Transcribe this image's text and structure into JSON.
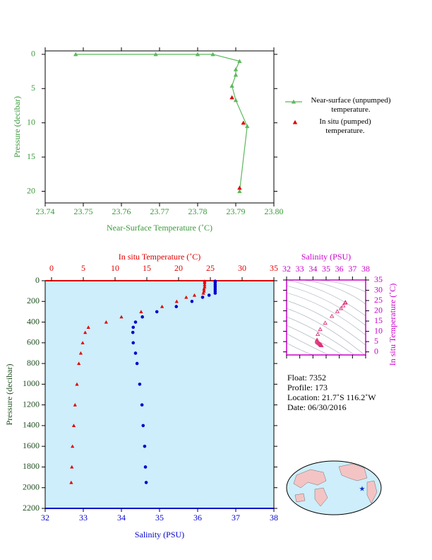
{
  "chart_data": [
    {
      "type": "line",
      "xlabel": "Near-Surface Temperature (˚C)",
      "ylabel": "Pressure (decibar)",
      "xlim": [
        23.74,
        23.8
      ],
      "xticks": [
        23.74,
        23.75,
        23.76,
        23.77,
        23.78,
        23.79,
        {
          "value": 23.8,
          "label": "23.80"
        }
      ],
      "ylim": [
        -0.5,
        21.7
      ],
      "yticks": [
        0,
        5,
        10,
        15,
        20
      ],
      "y_inverted": true,
      "legend": "right",
      "series": [
        {
          "name": "Near-surface (unpumped) temperature.",
          "color": "#5cb85c",
          "marker": "triangle",
          "line": true,
          "x": [
            23.748,
            23.769,
            23.78,
            23.784,
            23.791,
            23.79,
            23.79,
            23.789,
            23.79,
            23.793,
            23.791
          ],
          "y": [
            0,
            0,
            0,
            0,
            1.0,
            2.2,
            3.0,
            4.6,
            6.7,
            10.5,
            20.0
          ]
        },
        {
          "name": "In situ (pumped) temperature.",
          "color": "#e00000",
          "marker": "triangle",
          "line": false,
          "x": [
            23.789,
            23.792,
            23.791
          ],
          "y": [
            6.3,
            10.0,
            19.5
          ]
        }
      ]
    },
    {
      "type": "profile",
      "xlabel": "Salinity (PSU)",
      "x2label": "In situ Temperature (˚C)",
      "ylabel": "Pressure (decibar)",
      "xlim": [
        32,
        38
      ],
      "xticks": [
        32,
        33,
        34,
        35,
        36,
        37,
        38
      ],
      "x2lim": [
        -1,
        35
      ],
      "x2ticks": [
        0,
        5,
        10,
        15,
        20,
        25,
        30,
        35
      ],
      "ylim": [
        0,
        2200
      ],
      "yticks": [
        0,
        200,
        400,
        600,
        800,
        1000,
        1200,
        1400,
        1600,
        1800,
        2000,
        2200
      ],
      "y_inverted": true,
      "y": [
        5,
        20,
        40,
        60,
        80,
        100,
        120,
        140,
        160,
        200,
        250,
        300,
        350,
        400,
        450,
        500,
        600,
        700,
        800,
        1000,
        1200,
        1400,
        1600,
        1800,
        1950
      ],
      "series": [
        {
          "axis": "x2",
          "color": "#e00000",
          "marker": "triangle",
          "x": [
            24.1,
            24.1,
            24.1,
            24.1,
            24.0,
            24.0,
            23.9,
            22.5,
            21.2,
            19.7,
            17.4,
            14.1,
            11.0,
            8.6,
            5.8,
            5.3,
            4.9,
            4.6,
            4.3,
            4.0,
            3.7,
            3.5,
            3.3,
            3.2,
            3.1
          ]
        },
        {
          "axis": "x",
          "color": "#0000cc",
          "marker": "circle",
          "x": [
            36.46,
            36.46,
            36.46,
            36.46,
            36.46,
            36.46,
            36.46,
            36.3,
            36.13,
            35.85,
            35.44,
            34.93,
            34.55,
            34.37,
            34.31,
            34.3,
            34.31,
            34.37,
            34.41,
            34.48,
            34.54,
            34.57,
            34.61,
            34.63,
            34.65
          ]
        }
      ]
    },
    {
      "type": "ts",
      "xlabel": "Salinity (PSU)",
      "ylabel": "In situ Temperature (˚C)",
      "xlim": [
        32,
        38
      ],
      "xticks": [
        32,
        33,
        34,
        35,
        36,
        37,
        38
      ],
      "ylim": [
        -1.5,
        35
      ],
      "yticks": [
        0,
        5,
        10,
        15,
        20,
        25,
        30,
        35
      ],
      "color": "#e0307a",
      "axis_color": "#cc00cc"
    }
  ],
  "info": [
    "Float:  7352",
    "Profile:  173",
    "Location:  21.7˚S  116.2˚W",
    "Date:  06/30/2016"
  ]
}
